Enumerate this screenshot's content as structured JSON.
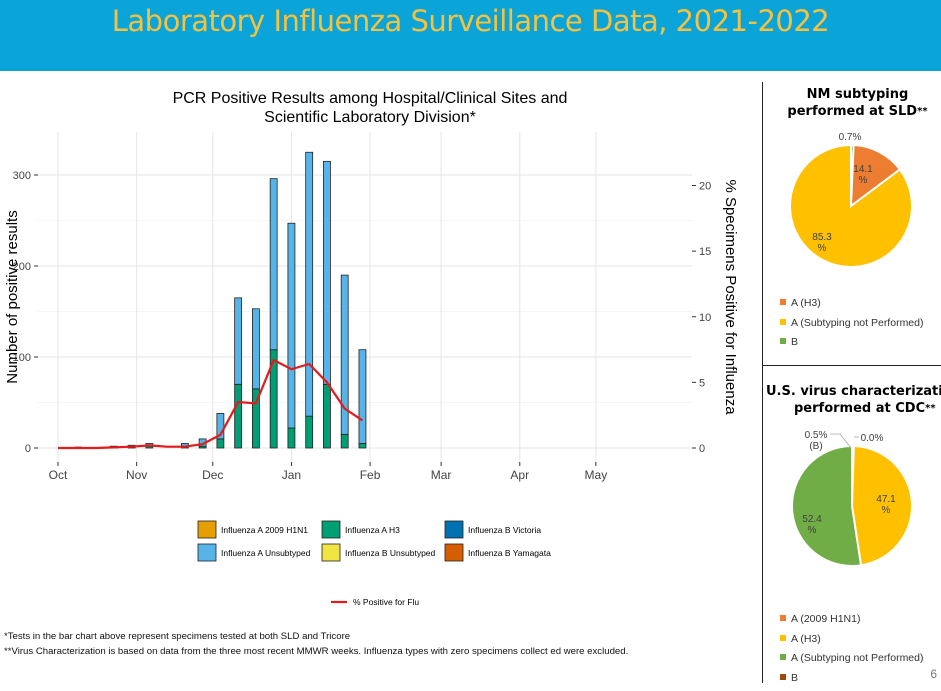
{
  "banner": {
    "title": "Laboratory Influenza Surveillance Data, 2021-2022"
  },
  "footnotes": {
    "note1": "*Tests in the bar chart above represent specimens tested at both SLD and Tricore",
    "note2": "**Virus Characterization is based on data from the three most recent MMWR weeks.  Influenza types with zero specimens collect ed were excluded."
  },
  "page_number": "6",
  "colors": {
    "a2009h1n1": "#e69f00",
    "ah3": "#009e73",
    "bvictoria": "#0072b2",
    "aunsub": "#56b4e9",
    "bunsub": "#f0e442",
    "byamagata": "#d55e00",
    "line": "#e41a1c",
    "pie_orange": "#ed7d31",
    "pie_yellow": "#ffc000",
    "pie_green": "#70ad47",
    "pie_brown": "#9e480e"
  },
  "pie1": {
    "title_line1": "NM subtyping",
    "title_line2": "performed at SLD",
    "title_mark": "**",
    "legend": [
      "A (H3)",
      "A (Subtyping not Performed)",
      "B"
    ]
  },
  "pie2": {
    "title_line1": "U.S. virus characterization",
    "title_line2": "performed at CDC",
    "title_mark": "**",
    "legend": [
      "A (2009 H1N1)",
      "A (H3)",
      "A (Subtyping not Performed)",
      "B"
    ]
  },
  "chart_data": [
    {
      "type": "bar",
      "title": "PCR Positive Results among Hospital/Clinical Sites and Scientific Laboratory Division*",
      "title_line1": "PCR Positive Results among Hospital/Clinical Sites and",
      "title_line2": "Scientific Laboratory Division*",
      "ylabel": "Number of positive results",
      "y2label": "% Specimens Positive for Influenza",
      "ylim": [
        0,
        330
      ],
      "y2lim": [
        0,
        22
      ],
      "yticks": [
        0,
        100,
        200,
        300
      ],
      "y2ticks": [
        0,
        5,
        10,
        15,
        20
      ],
      "xlim": [
        "2021-10-01",
        "2022-05-31"
      ],
      "xticks": [
        "2021-10-01",
        "2021-11-01",
        "2021-12-01",
        "2022-01-01",
        "2022-02-01",
        "2022-03-01",
        "2022-04-01",
        "2022-05-01"
      ],
      "xticklabels": [
        "Oct",
        "Nov",
        "Dec",
        "Jan",
        "Feb",
        "Mar",
        "Apr",
        "May"
      ],
      "stacked": true,
      "x": [
        "2021-10-09",
        "2021-10-23",
        "2021-10-30",
        "2021-11-06",
        "2021-11-20",
        "2021-11-27",
        "2021-12-04",
        "2021-12-11",
        "2021-12-18",
        "2021-12-25",
        "2022-01-01",
        "2022-01-08",
        "2022-01-15",
        "2022-01-22",
        "2022-01-29"
      ],
      "series": [
        {
          "name": "Influenza A 2009 H1N1",
          "values": [
            0,
            0,
            0,
            0,
            0,
            0,
            0,
            0,
            0,
            0,
            0,
            0,
            0,
            0,
            0
          ]
        },
        {
          "name": "Influenza A H3",
          "values": [
            0,
            0,
            1,
            2,
            2,
            2,
            10,
            70,
            65,
            108,
            22,
            35,
            70,
            15,
            5
          ]
        },
        {
          "name": "Influenza B Victoria",
          "values": [
            0,
            0,
            0,
            0,
            0,
            0,
            0,
            0,
            0,
            0,
            0,
            0,
            0,
            0,
            0
          ]
        },
        {
          "name": "Influenza A Unsubtyped",
          "values": [
            1,
            2,
            2,
            3,
            3,
            8,
            28,
            95,
            88,
            188,
            225,
            290,
            245,
            175,
            103
          ]
        },
        {
          "name": "Influenza B Unsubtyped",
          "values": [
            0,
            0,
            0,
            0,
            0,
            0,
            0,
            0,
            0,
            0,
            0,
            0,
            0,
            0,
            0
          ]
        },
        {
          "name": "Influenza B Yamagata",
          "values": [
            0,
            0,
            0,
            0,
            0,
            0,
            0,
            0,
            0,
            0,
            0,
            0,
            0,
            0,
            0
          ]
        }
      ],
      "line_series": {
        "name": "% Positive for Flu",
        "x": [
          "2021-10-01",
          "2021-10-09",
          "2021-10-16",
          "2021-10-23",
          "2021-10-30",
          "2021-11-06",
          "2021-11-13",
          "2021-11-20",
          "2021-11-27",
          "2021-12-04",
          "2021-12-11",
          "2021-12-18",
          "2021-12-25",
          "2022-01-01",
          "2022-01-08",
          "2022-01-15",
          "2022-01-22",
          "2022-01-29"
        ],
        "values": [
          0,
          0,
          0,
          0.05,
          0.1,
          0.2,
          0.1,
          0.1,
          0.3,
          1.0,
          3.5,
          3.4,
          6.7,
          6.0,
          6.4,
          5.0,
          3.0,
          2.1
        ]
      },
      "legend": [
        "Influenza A 2009 H1N1",
        "Influenza A H3",
        "Influenza B Victoria",
        "Influenza A Unsubtyped",
        "Influenza B Unsubtyped",
        "Influenza B Yamagata"
      ],
      "line_legend": "% Positive for Flu",
      "grid": true,
      "legend_position": "bottom"
    },
    {
      "type": "pie",
      "labels": [
        "0.7%",
        "14.1\n%",
        "85.3\n%"
      ],
      "categories": [
        "B",
        "A (H3)",
        "A (Subtyping not Performed)"
      ],
      "values": [
        0.7,
        14.1,
        85.3
      ],
      "colors": [
        "#70ad47",
        "#ed7d31",
        "#ffc000"
      ]
    },
    {
      "type": "pie",
      "labels": [
        "0.5%\n(B)",
        "0.0%",
        "47.1\n%",
        "52.4\n%"
      ],
      "categories": [
        "B",
        "A (2009 H1N1)",
        "A (H3)",
        "A (Subtyping not Performed)"
      ],
      "values": [
        0.5,
        0.0,
        47.1,
        52.4
      ],
      "colors": [
        "#9e480e",
        "#ed7d31",
        "#ffc000",
        "#70ad47"
      ]
    }
  ]
}
